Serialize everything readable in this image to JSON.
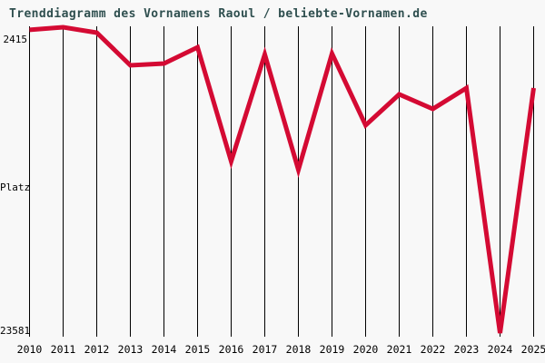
{
  "page": {
    "background_color": "#f8f8f8",
    "gridline_color": "#000000"
  },
  "title": {
    "text": "Trenddiagramm des Vornamens Raoul / beliebte-Vornamen.de",
    "color": "#2f4f4f"
  },
  "y_axis": {
    "top_label": "2415",
    "middle_label": "Platz",
    "bottom_label": "23581"
  },
  "chart_data": {
    "type": "line",
    "title": "Trenddiagramm des Vornamens Raoul / beliebte-Vornamen.de",
    "ylabel": "Platz",
    "x": [
      "2010",
      "2011",
      "2012",
      "2013",
      "2014",
      "2015",
      "2016",
      "2017",
      "2018",
      "2019",
      "2020",
      "2021",
      "2022",
      "2023",
      "2024",
      "2025"
    ],
    "series": [
      {
        "name": "Platz",
        "values": [
          2600,
          2415,
          2790,
          5050,
          4930,
          3800,
          11700,
          4300,
          12280,
          4240,
          9200,
          7060,
          8070,
          6620,
          23581,
          6620
        ]
      }
    ],
    "y_best": 2415,
    "y_worst": 23581,
    "y_axis_inverted": true,
    "grid": "vertical-only",
    "legend": "none",
    "line_color": "#d40a33"
  }
}
